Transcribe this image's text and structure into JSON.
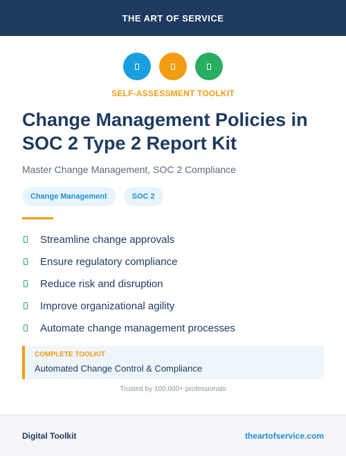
{
  "header": {
    "brand": "THE ART OF SERVICE"
  },
  "icons": [
    {
      "name": "document-icon",
      "color": "#1a9ee0"
    },
    {
      "name": "document-icon",
      "color": "#f39c12"
    },
    {
      "name": "document-icon",
      "color": "#27ae60"
    }
  ],
  "eyebrow": "SELF-ASSESSMENT TOOLKIT",
  "title": "Change Management Policies in SOC 2 Type 2 Report Kit",
  "subtitle": "Master Change Management, SOC 2 Compliance",
  "tags": [
    "Change Management",
    "SOC 2"
  ],
  "features": [
    "Streamline change approvals",
    "Ensure regulatory compliance",
    "Reduce risk and disruption",
    "Improve organizational agility",
    "Automate change management processes"
  ],
  "callout": {
    "eyebrow": "COMPLETE TOOLKIT",
    "text": "Automated Change Control & Compliance"
  },
  "trust": "Trusted by 100,000+ professionals",
  "footer": {
    "label": "Digital Toolkit",
    "link": "theartofservice.com"
  },
  "colors": {
    "navy": "#1e3a5f",
    "orange": "#f39c12",
    "blue": "#1a9ee0",
    "green": "#27ae60"
  }
}
